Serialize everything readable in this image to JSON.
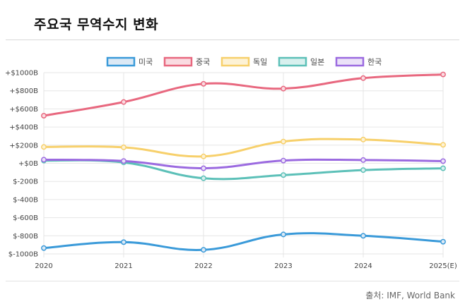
{
  "title": "주요국 무역수지 변화",
  "source": "출처: IMF, World Bank",
  "chart_data": {
    "type": "line",
    "title": "주요국 무역수지 변화",
    "xlabel": "",
    "ylabel": "",
    "categories": [
      "2020",
      "2021",
      "2022",
      "2023",
      "2024",
      "2025(E)"
    ],
    "ylim": [
      -1000,
      1000
    ],
    "yticks": [
      1000,
      800,
      600,
      400,
      200,
      0,
      -200,
      -400,
      -600,
      -800,
      -1000
    ],
    "ytick_labels": [
      "+$1000B",
      "+$800B",
      "+$600B",
      "+$400B",
      "+$200B",
      "+$0B",
      "$-200B",
      "$-400B",
      "$-600B",
      "$-800B",
      "$-1000B"
    ],
    "legend_position": "top-center",
    "grid": true,
    "series": [
      {
        "name": "미국",
        "color": "#3a9ad9",
        "fill": "#dce9f5",
        "values": [
          -935,
          -870,
          -955,
          -785,
          -800,
          -865
        ]
      },
      {
        "name": "중국",
        "color": "#e8687f",
        "fill": "#fadbe1",
        "values": [
          525,
          676,
          877,
          824,
          940,
          980
        ]
      },
      {
        "name": "독일",
        "color": "#f7d06b",
        "fill": "#fdf2d5",
        "values": [
          180,
          176,
          76,
          240,
          262,
          204
        ]
      },
      {
        "name": "일본",
        "color": "#5cc0b8",
        "fill": "#d8f0ee",
        "values": [
          30,
          10,
          -165,
          -130,
          -75,
          -55
        ]
      },
      {
        "name": "한국",
        "color": "#9b6ae0",
        "fill": "#ebe2f8",
        "values": [
          40,
          25,
          -55,
          30,
          36,
          24
        ]
      }
    ]
  }
}
